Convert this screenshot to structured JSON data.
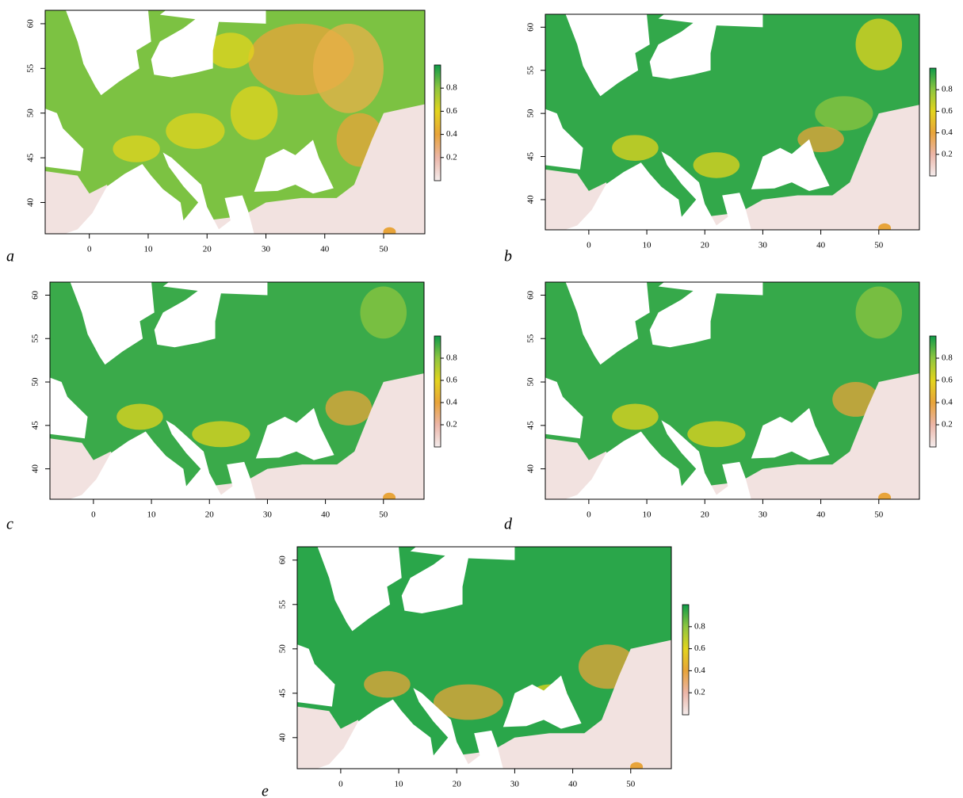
{
  "chart_data": [
    {
      "type": "heatmap",
      "label": "a",
      "xlim": [
        -7.5,
        57
      ],
      "ylim": [
        36.5,
        61.5
      ],
      "xticks": [
        0,
        10,
        20,
        30,
        40,
        50
      ],
      "yticks": [
        40,
        45,
        50,
        55,
        60
      ],
      "zlim": [
        0,
        1
      ],
      "zticks": [
        0.2,
        0.4,
        0.6,
        0.8
      ],
      "colormap": [
        "#f4ecec",
        "#ecb6a8",
        "#e8a43a",
        "#e3d41e",
        "#8ec63f",
        "#0f9a48"
      ]
    },
    {
      "type": "heatmap",
      "label": "b",
      "xlim": [
        -7.5,
        57
      ],
      "ylim": [
        36.5,
        61.5
      ],
      "xticks": [
        0,
        10,
        20,
        30,
        40,
        50
      ],
      "yticks": [
        40,
        45,
        50,
        55,
        60
      ],
      "zlim": [
        0,
        1
      ],
      "zticks": [
        0.2,
        0.4,
        0.6,
        0.8
      ],
      "colormap": [
        "#f4ecec",
        "#ecb6a8",
        "#e8a43a",
        "#e3d41e",
        "#8ec63f",
        "#0f9a48"
      ]
    },
    {
      "type": "heatmap",
      "label": "c",
      "xlim": [
        -7.5,
        57
      ],
      "ylim": [
        36.5,
        61.5
      ],
      "xticks": [
        0,
        10,
        20,
        30,
        40,
        50
      ],
      "yticks": [
        40,
        45,
        50,
        55,
        60
      ],
      "zlim": [
        0,
        1
      ],
      "zticks": [
        0.2,
        0.4,
        0.6,
        0.8
      ],
      "colormap": [
        "#f4ecec",
        "#ecb6a8",
        "#e8a43a",
        "#e3d41e",
        "#8ec63f",
        "#0f9a48"
      ]
    },
    {
      "type": "heatmap",
      "label": "d",
      "xlim": [
        -7.5,
        57
      ],
      "ylim": [
        36.5,
        61.5
      ],
      "xticks": [
        0,
        10,
        20,
        30,
        40,
        50
      ],
      "yticks": [
        40,
        45,
        50,
        55,
        60
      ],
      "zlim": [
        0,
        1
      ],
      "zticks": [
        0.2,
        0.4,
        0.6,
        0.8
      ],
      "colormap": [
        "#f4ecec",
        "#ecb6a8",
        "#e8a43a",
        "#e3d41e",
        "#8ec63f",
        "#0f9a48"
      ]
    },
    {
      "type": "heatmap",
      "label": "e",
      "xlim": [
        -7.5,
        57
      ],
      "ylim": [
        36.5,
        61.5
      ],
      "xticks": [
        0,
        10,
        20,
        30,
        40,
        50
      ],
      "yticks": [
        40,
        45,
        50,
        55,
        60
      ],
      "zlim": [
        0,
        1
      ],
      "zticks": [
        0.2,
        0.4,
        0.6,
        0.8
      ],
      "colormap": [
        "#f4ecec",
        "#ecb6a8",
        "#e8a43a",
        "#e3d41e",
        "#8ec63f",
        "#0f9a48"
      ]
    }
  ]
}
